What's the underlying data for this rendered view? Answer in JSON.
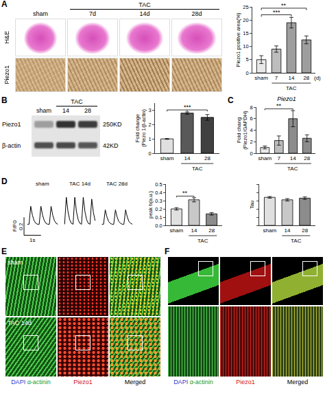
{
  "chart_data": [
    {
      "type": "bar",
      "y_label": "Piezo1 positive area(%)",
      "categories": [
        "sham",
        "7",
        "14",
        "28"
      ],
      "values": [
        5,
        9,
        19,
        12.5
      ],
      "errors": [
        1.5,
        1.2,
        2,
        1.5
      ],
      "colors": [
        "#e8e8e8",
        "#bdbdbd",
        "#9e9e9e",
        "#9e9e9e"
      ],
      "ylim": [
        0,
        25
      ],
      "yticks": [
        0,
        5,
        10,
        15,
        20,
        25
      ],
      "annotations": [
        {
          "text": "TAC",
          "span": [
            1,
            3
          ]
        },
        {
          "text": "(d)",
          "at": 3
        },
        {
          "text": "***",
          "between": [
            0,
            2
          ]
        },
        {
          "text": "**",
          "between": [
            0,
            3
          ]
        }
      ]
    },
    {
      "type": "bar",
      "y_label": "Fold change (Piezo 1/β-actin)",
      "categories": [
        "sham",
        "14",
        "28"
      ],
      "values": [
        1,
        2.8,
        2.5
      ],
      "errors": [
        0.03,
        0.08,
        0.2
      ],
      "colors": [
        "#e0e0e0",
        "#595959",
        "#404040"
      ],
      "ylim": [
        0,
        3.5
      ],
      "yticks": [
        0,
        1,
        2,
        3
      ],
      "annotations": [
        {
          "text": "TAC",
          "span": [
            1,
            2
          ]
        },
        {
          "text": "***",
          "between": [
            0,
            1,
            2
          ]
        }
      ]
    },
    {
      "type": "bar",
      "title": "Piezo1",
      "y_label": "Fold chang (Piezo1/GAPDH)",
      "categories": [
        "sham",
        "7",
        "14",
        "28"
      ],
      "values": [
        1,
        2.2,
        6,
        2.6
      ],
      "errors": [
        0.25,
        0.8,
        1.4,
        0.6
      ],
      "colors": [
        "#e8e8e8",
        "#bdbdbd",
        "#8c8c8c",
        "#8c8c8c"
      ],
      "ylim": [
        0,
        8
      ],
      "yticks": [
        0,
        2,
        4,
        6,
        8
      ],
      "annotations": [
        {
          "text": "TAC",
          "span": [
            1,
            3
          ]
        },
        {
          "text": "**",
          "between": [
            0,
            2
          ]
        }
      ]
    },
    {
      "type": "line",
      "color": "#000000",
      "tick_labels": false,
      "xlim": [
        -0.4,
        6.4
      ],
      "ylim": [
        0.85,
        1.4
      ],
      "scale_bars": {
        "y": {
          "value": 0.2,
          "label": "0.2",
          "title": "F/F0"
        },
        "x": {
          "value": 1,
          "label": "1s"
        }
      },
      "series": [
        {
          "name": "sham",
          "x": [
            0.0,
            0.1,
            0.2,
            0.3,
            0.4,
            0.5,
            0.6,
            0.7,
            0.8,
            0.9,
            1.0,
            1.1,
            1.2,
            1.3,
            1.4,
            1.5,
            1.6,
            1.7,
            1.8
          ],
          "values": [
            1.0,
            1.0,
            1.2,
            1.1,
            1.04,
            1.01,
            1.0,
            1.0,
            1.2,
            1.1,
            1.04,
            1.01,
            1.0,
            1.0,
            1.2,
            1.1,
            1.04,
            1.01,
            1.0
          ]
        },
        {
          "name": "TAC 14d",
          "x": [
            2.2,
            2.3,
            2.4,
            2.5,
            2.6,
            2.7,
            2.8,
            2.9,
            3.0,
            3.1,
            3.2,
            3.3,
            3.4,
            3.5,
            3.6,
            3.7,
            3.8,
            3.9,
            4.0
          ],
          "values": [
            1.0,
            1.3,
            1.14,
            1.05,
            1.01,
            1.0,
            1.3,
            1.14,
            1.05,
            1.01,
            1.0,
            1.3,
            1.14,
            1.05,
            1.01,
            1.0,
            1.28,
            1.13,
            1.04
          ]
        },
        {
          "name": "TAC 28d",
          "x": [
            4.4,
            4.5,
            4.6,
            4.7,
            4.8,
            4.9,
            5.0,
            5.1,
            5.2,
            5.3,
            5.4,
            5.5,
            5.6,
            5.7,
            5.8,
            5.9,
            6.0,
            6.1,
            6.2
          ],
          "values": [
            1.0,
            1.0,
            1.16,
            1.08,
            1.03,
            1.01,
            1.0,
            1.0,
            1.16,
            1.08,
            1.03,
            1.01,
            1.0,
            1.0,
            1.16,
            1.08,
            1.03,
            1.01,
            1.0
          ]
        }
      ]
    },
    {
      "type": "bar",
      "y_label": "peak h(a.u.)",
      "categories": [
        "sham",
        "14",
        "28"
      ],
      "values": [
        0.2,
        0.31,
        0.14
      ],
      "errors": [
        0.015,
        0.025,
        0.015
      ],
      "colors": [
        "#e0e0e0",
        "#c8c8c8",
        "#8c8c8c"
      ],
      "ylim": [
        0,
        0.5
      ],
      "yticks": [
        {
          "value": 0,
          "label": "0.0"
        },
        0.1,
        0.2,
        0.3,
        0.4,
        0.5
      ],
      "annotations": [
        {
          "text": "TAC",
          "span": [
            1,
            2
          ]
        },
        {
          "text": "**",
          "between": [
            0,
            1
          ]
        }
      ]
    },
    {
      "type": "bar",
      "y_label": "Tau",
      "categories": [
        "sham",
        "14",
        "28"
      ],
      "values": [
        0.34,
        0.31,
        0.33
      ],
      "errors": [
        0.01,
        0.015,
        0.015
      ],
      "colors": [
        "#e0e0e0",
        "#c8c8c8",
        "#8c8c8c"
      ],
      "ylim": [
        0,
        0.5
      ],
      "yticks": [
        0,
        0.1,
        0.2,
        0.3,
        0.4,
        0.5
      ],
      "tick_labels": "x",
      "annotations": [
        {
          "text": "TAC",
          "span": [
            1,
            2
          ]
        }
      ]
    }
  ],
  "panels": {
    "A": {
      "letter": "A",
      "columns": [
        "sham",
        "7d",
        "14d",
        "28d"
      ],
      "group": "TAC",
      "group_span": [
        1,
        3
      ],
      "rows": [
        "H&E",
        "Piezo1"
      ]
    },
    "B": {
      "letter": "B",
      "lanes": [
        "sham",
        "14",
        "28"
      ],
      "group": "TAC",
      "group_span": [
        1,
        2
      ],
      "bands": [
        {
          "name": "Piezo1",
          "size": "250KD"
        },
        {
          "name": "β-actin",
          "size": "42KD"
        }
      ]
    },
    "C": {
      "letter": "C"
    },
    "D": {
      "letter": "D"
    },
    "E": {
      "letter": "E",
      "rows": [
        "sham",
        "TAC 14d"
      ],
      "channels": [
        "DAPI",
        "α-actinin",
        "Piezo1",
        "Merged"
      ]
    },
    "F": {
      "letter": "F",
      "channels": [
        "DAPI",
        "α-actinin",
        "Piezo1",
        "Merged"
      ]
    }
  }
}
